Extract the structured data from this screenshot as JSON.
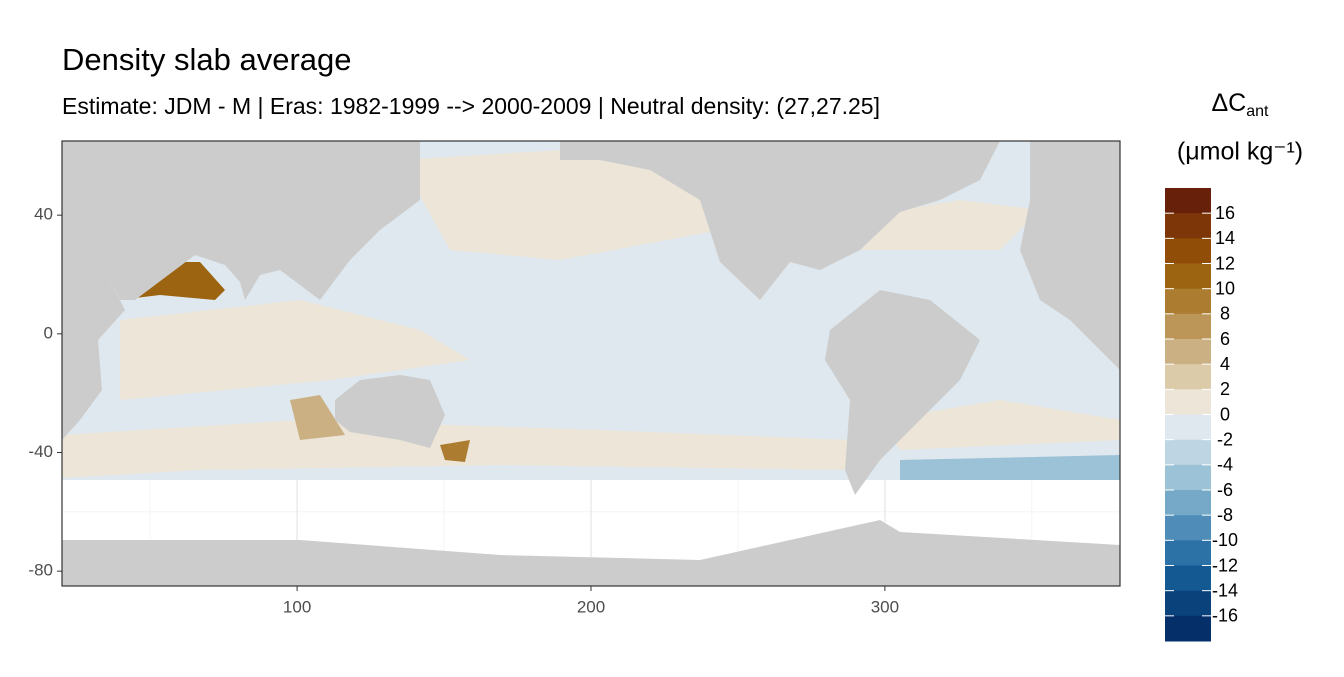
{
  "chart_data": {
    "type": "map",
    "title": "Density slab average",
    "subtitle": "Estimate: JDM - M | Eras: 1982-1999 --> 2000-2009 | Neutral density: (27,27.25]",
    "xlim": [
      20,
      380
    ],
    "xticks": [
      100,
      200,
      300
    ],
    "xminor": [
      50,
      150,
      250,
      350
    ],
    "ylim": [
      -85,
      65
    ],
    "yticks": [
      40,
      0,
      -40,
      -80
    ],
    "yminor": [
      60,
      20,
      -20,
      -60
    ],
    "grid": true,
    "legend": {
      "title": "ΔC",
      "title_sub": "ant",
      "unit": "(μmol kg⁻¹)",
      "limits": [
        18,
        -18
      ],
      "breaks": [
        16,
        14,
        12,
        10,
        8,
        6,
        4,
        2,
        0,
        -2,
        -4,
        -6,
        -8,
        -10,
        -12,
        -14,
        -16
      ],
      "colors": [
        "#67200a",
        "#7d3608",
        "#8f4d07",
        "#9c6410",
        "#ac7d30",
        "#bb9658",
        "#cbb083",
        "#dccba8",
        "#ece5d8",
        "#dfe8ee",
        "#bed6e4",
        "#9cc2d7",
        "#76a9c8",
        "#4f8db8",
        "#2c72a6",
        "#145992",
        "#0a437c",
        "#052f68"
      ]
    }
  }
}
